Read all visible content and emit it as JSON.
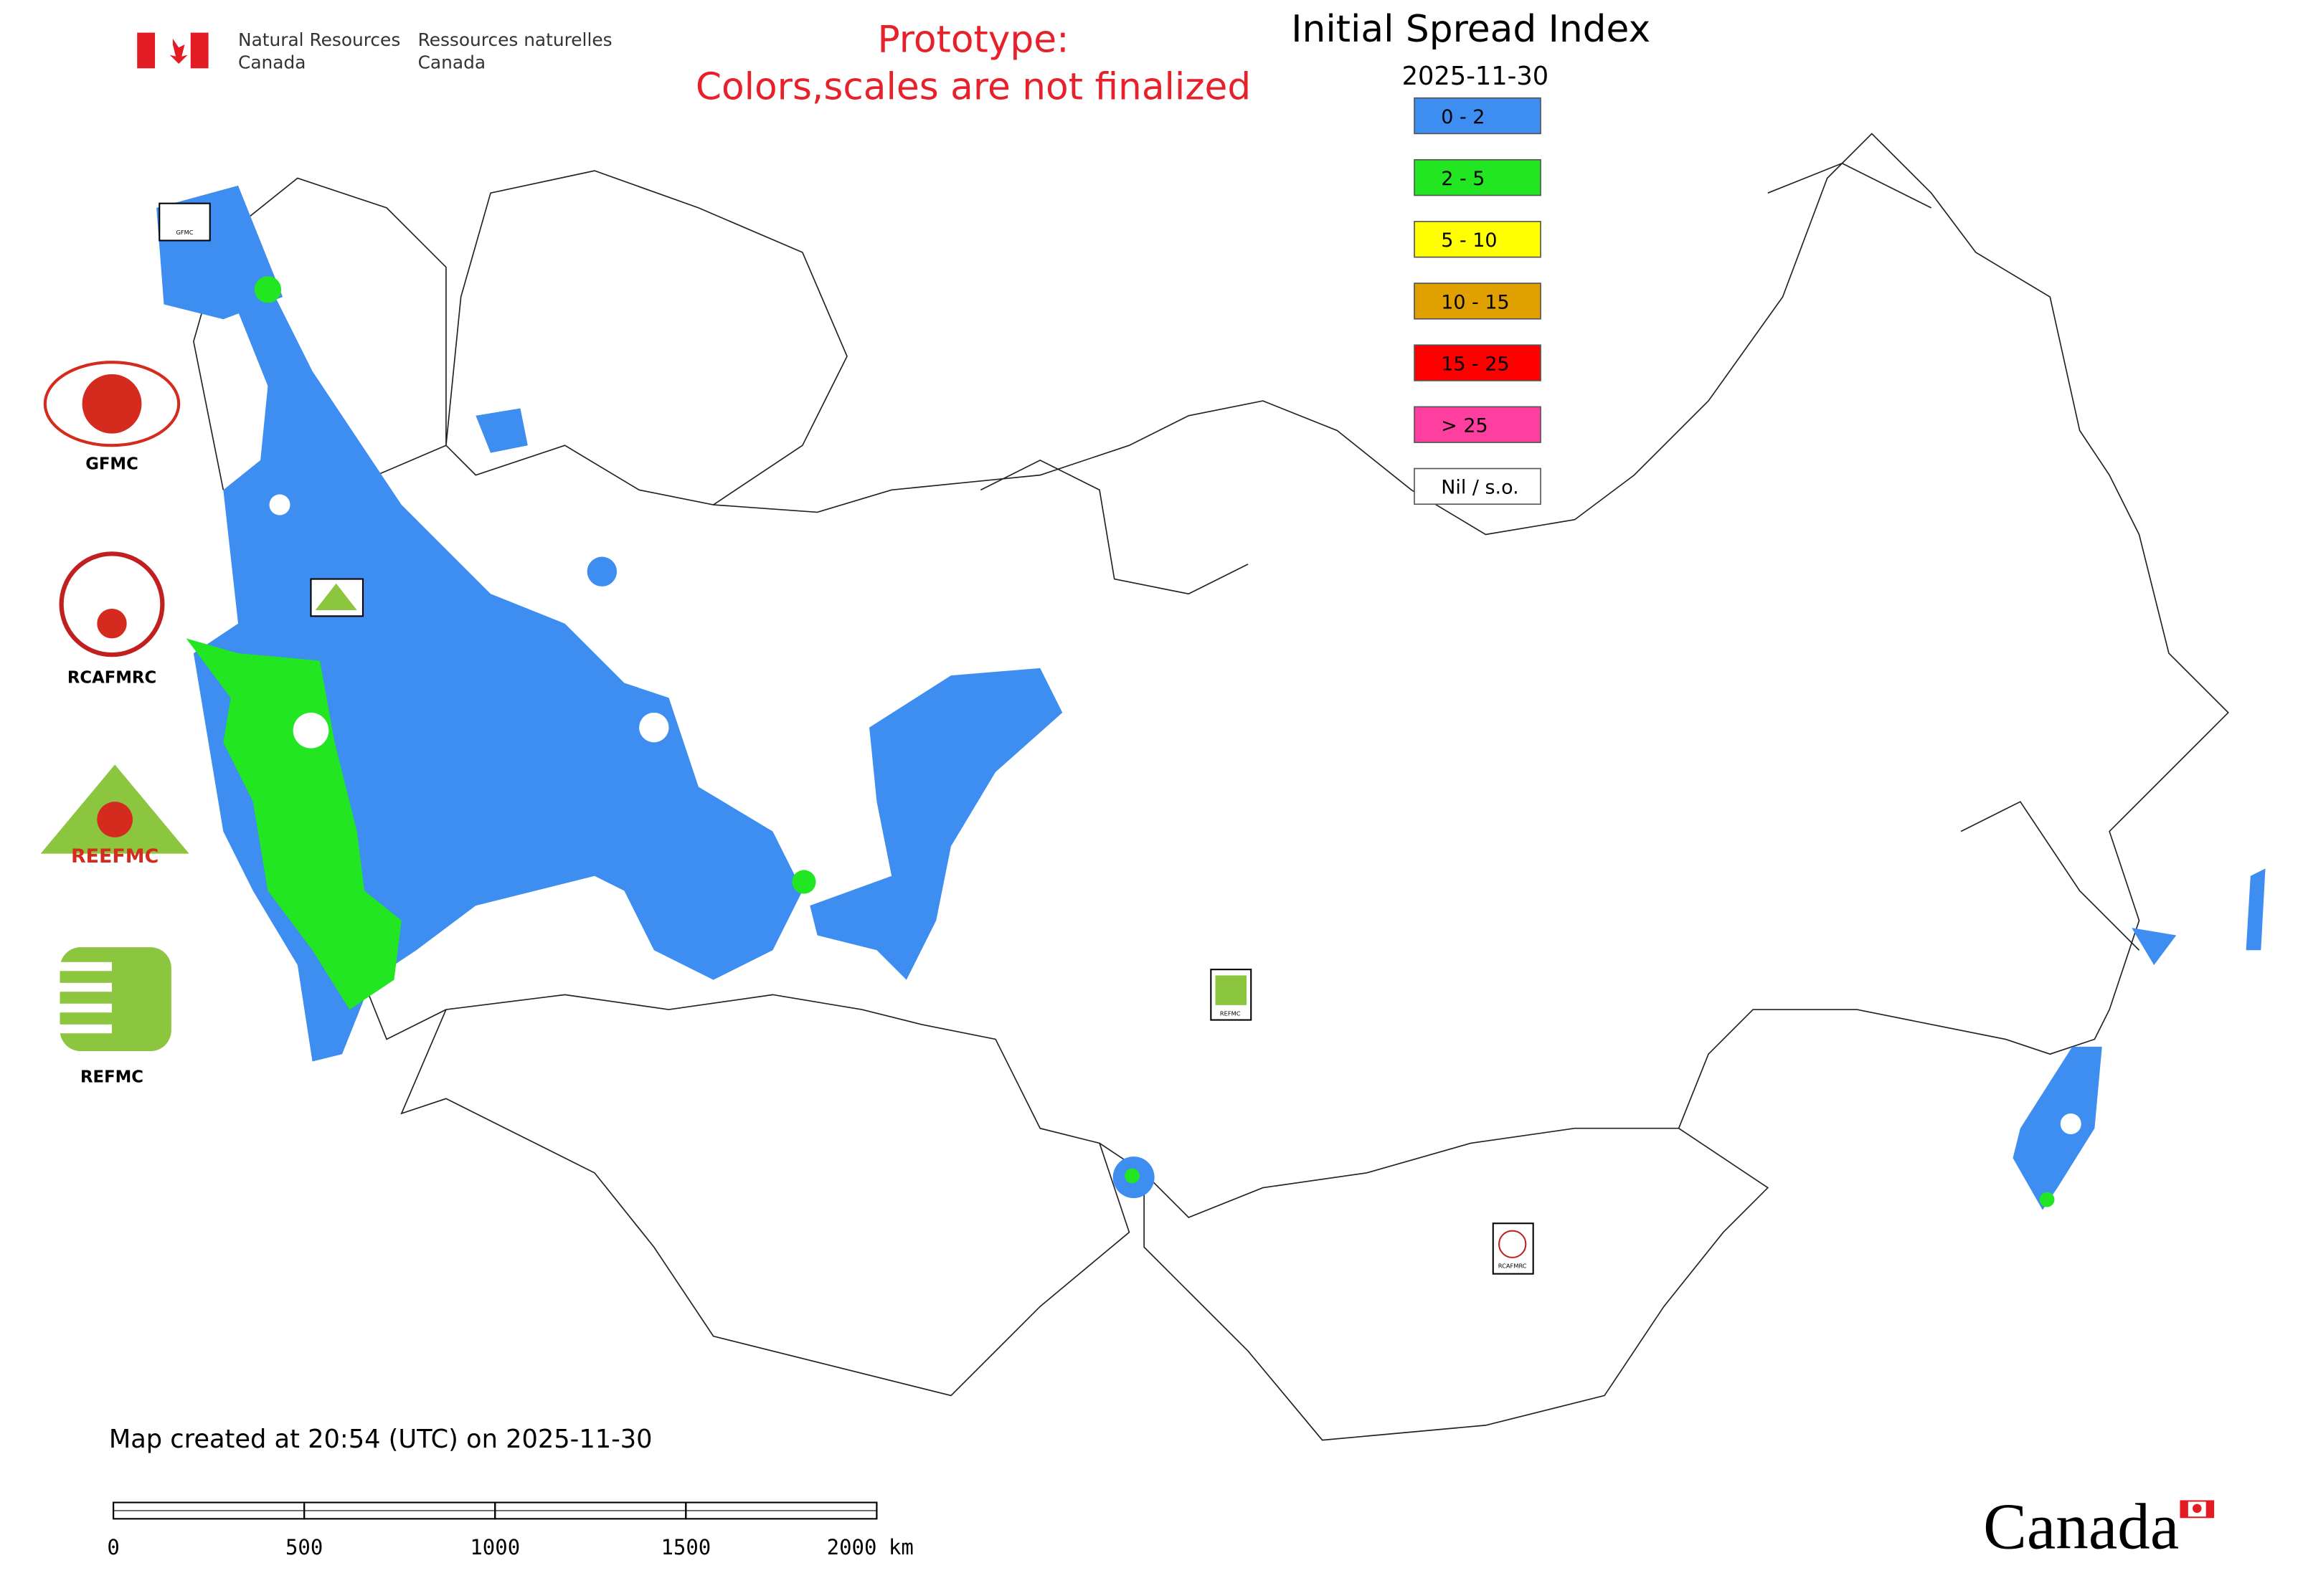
{
  "header": {
    "department_en": [
      "Natural Resources",
      "Canada"
    ],
    "department_fr": [
      "Ressources naturelles",
      "Canada"
    ]
  },
  "notice": [
    "Prototype:",
    "Colors,scales are not finalized"
  ],
  "legend": {
    "title": "Initial Spread Index",
    "date": "2025-11-30",
    "classes": [
      {
        "label": "0 - 2",
        "color": "#3d8ef0"
      },
      {
        "label": "2 - 5",
        "color": "#22e622"
      },
      {
        "label": "5 - 10",
        "color": "#ffff00"
      },
      {
        "label": "10 - 15",
        "color": "#e0a000"
      },
      {
        "label": "15 - 25",
        "color": "#ff0000"
      },
      {
        "label": "> 25",
        "color": "#ff3fa0"
      },
      {
        "label": "Nil / s.o.",
        "color": "#ffffff"
      }
    ]
  },
  "logos": [
    "GFMC",
    "RCAFMRC",
    "REEFMC",
    "REFMC"
  ],
  "footer": "Map created at 20:54 (UTC) on 2025-11-30",
  "scale_bar": {
    "ticks": [
      0,
      500,
      1000,
      1500,
      2000
    ],
    "unit": "km"
  },
  "wordmark": "Canada"
}
